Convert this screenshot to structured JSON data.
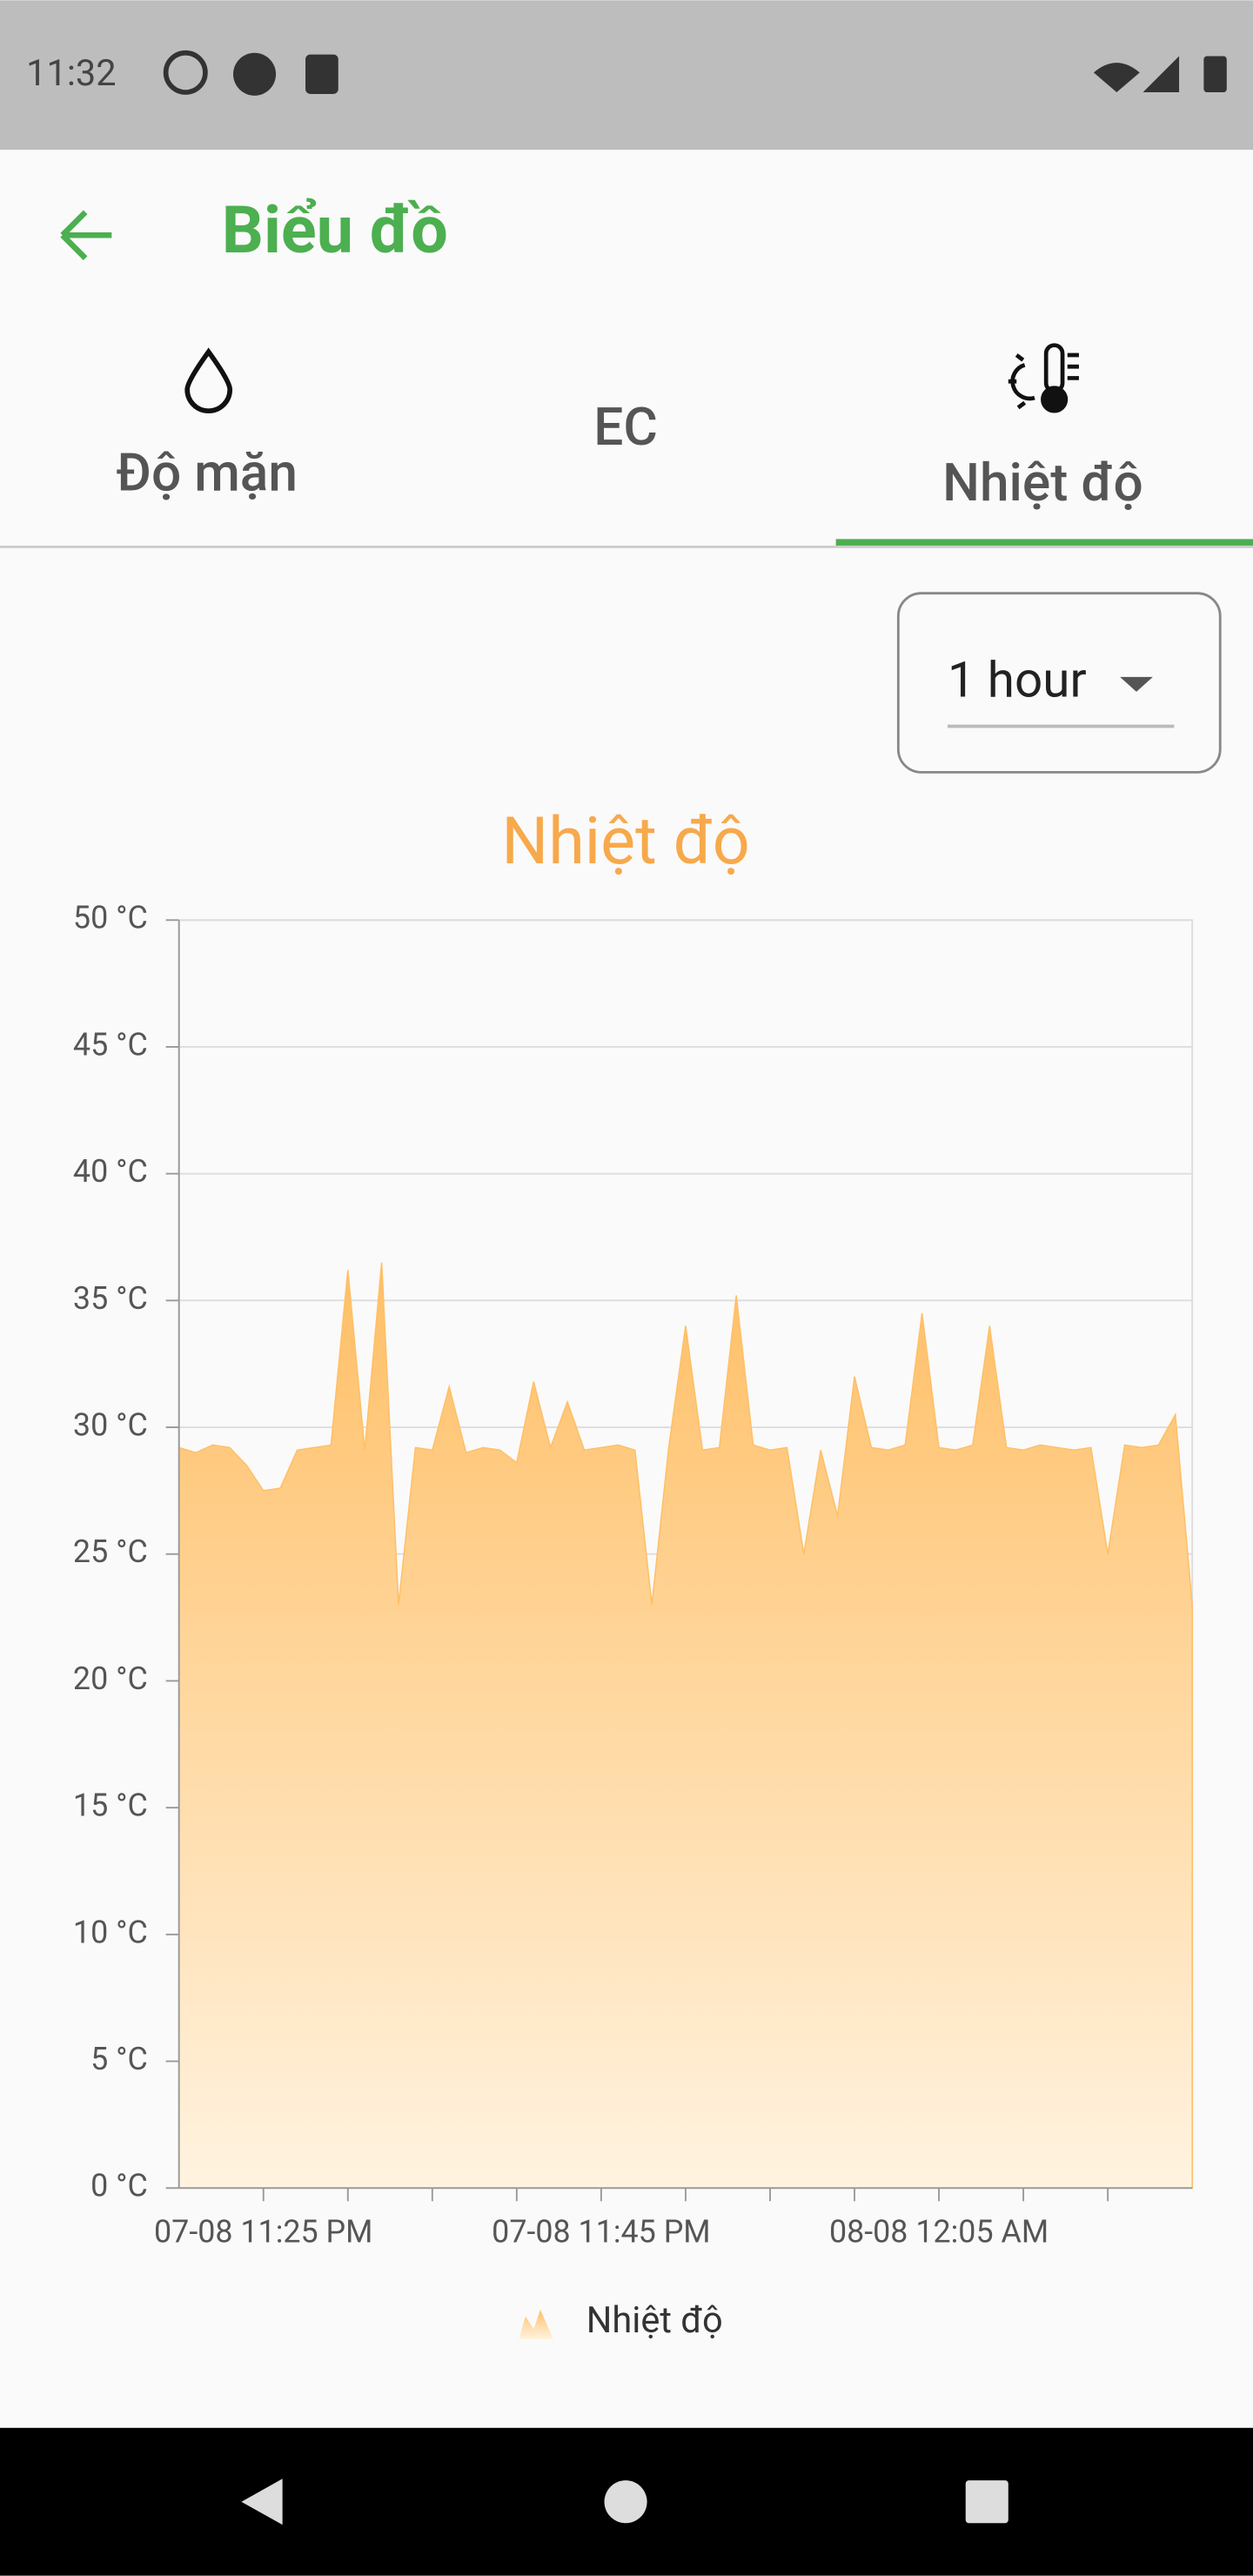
{
  "status_bar": {
    "time": "11:32"
  },
  "app_bar": {
    "title": "Biểu đồ"
  },
  "tabs": [
    "Độ mặn",
    "EC",
    "Nhiệt độ"
  ],
  "range_dropdown": {
    "selected": "1 hour"
  },
  "chart_data": {
    "type": "area",
    "title": "Nhiệt độ",
    "x": [
      "07-08 11:20 PM",
      "07-08 11:21 PM",
      "07-08 11:22 PM",
      "07-08 11:23 PM",
      "07-08 11:24 PM",
      "07-08 11:25 PM",
      "07-08 11:26 PM",
      "07-08 11:27 PM",
      "07-08 11:28 PM",
      "07-08 11:29 PM",
      "07-08 11:30 PM",
      "07-08 11:31 PM",
      "07-08 11:32 PM",
      "07-08 11:33 PM",
      "07-08 11:34 PM",
      "07-08 11:35 PM",
      "07-08 11:36 PM",
      "07-08 11:37 PM",
      "07-08 11:38 PM",
      "07-08 11:39 PM",
      "07-08 11:40 PM",
      "07-08 11:41 PM",
      "07-08 11:42 PM",
      "07-08 11:43 PM",
      "07-08 11:44 PM",
      "07-08 11:45 PM",
      "07-08 11:46 PM",
      "07-08 11:47 PM",
      "07-08 11:48 PM",
      "07-08 11:49 PM",
      "07-08 11:50 PM",
      "07-08 11:51 PM",
      "07-08 11:52 PM",
      "07-08 11:53 PM",
      "07-08 11:54 PM",
      "07-08 11:55 PM",
      "07-08 11:56 PM",
      "07-08 11:57 PM",
      "07-08 11:58 PM",
      "07-08 11:59 PM",
      "08-08 12:00 AM",
      "08-08 12:01 AM",
      "08-08 12:02 AM",
      "08-08 12:03 AM",
      "08-08 12:04 AM",
      "08-08 12:05 AM",
      "08-08 12:06 AM",
      "08-08 12:07 AM",
      "08-08 12:08 AM",
      "08-08 12:09 AM",
      "08-08 12:10 AM",
      "08-08 12:11 AM",
      "08-08 12:12 AM",
      "08-08 12:13 AM",
      "08-08 12:14 AM",
      "08-08 12:15 AM",
      "08-08 12:16 AM",
      "08-08 12:17 AM",
      "08-08 12:18 AM",
      "08-08 12:19 AM",
      "08-08 12:20 AM"
    ],
    "series": [
      {
        "name": "Nhiệt độ",
        "color": "#ffbf66",
        "values": [
          29.2,
          29,
          29.3,
          29.2,
          28.5,
          27.5,
          27.6,
          29.1,
          29.2,
          29.3,
          36.2,
          29.1,
          36.5,
          23,
          29.2,
          29.1,
          31.6,
          29,
          29.2,
          29.1,
          28.6,
          31.8,
          29.2,
          31,
          29.1,
          29.2,
          29.3,
          29.1,
          23,
          29.2,
          34,
          29.1,
          29.2,
          35.2,
          29.3,
          29.1,
          29.2,
          25,
          29.1,
          26.5,
          32,
          29.2,
          29.1,
          29.3,
          34.5,
          29.2,
          29.1,
          29.3,
          34,
          29.2,
          29.1,
          29.3,
          29.2,
          29.1,
          29.2,
          25,
          29.3,
          29.2,
          29.3,
          30.5,
          23
        ]
      }
    ],
    "xlim": [
      "07-08 11:20 PM",
      "08-08 12:20 AM"
    ],
    "xticks": [
      "07-08 11:25 PM",
      "07-08 11:45 PM",
      "08-08 12:05 AM"
    ],
    "xminor_ticks": [
      "07-08 11:30 PM",
      "07-08 11:35 PM",
      "07-08 11:40 PM",
      "07-08 11:50 PM",
      "07-08 11:55 PM",
      "08-08 12:00 AM",
      "08-08 12:10 AM",
      "08-08 12:15 AM"
    ],
    "ylim": [
      0,
      50
    ],
    "yticks": [
      {
        "value": 0,
        "label": "0 °C"
      },
      {
        "value": 5,
        "label": "5 °C"
      },
      {
        "value": 10,
        "label": "10 °C"
      },
      {
        "value": 15,
        "label": "15 °C"
      },
      {
        "value": 20,
        "label": "20 °C"
      },
      {
        "value": 25,
        "label": "25 °C"
      },
      {
        "value": 30,
        "label": "30 °C"
      },
      {
        "value": 35,
        "label": "35 °C"
      },
      {
        "value": 40,
        "label": "40 °C"
      },
      {
        "value": 45,
        "label": "45 °C"
      },
      {
        "value": 50,
        "label": "50 °C"
      }
    ],
    "grid": true,
    "legend": "bottom"
  }
}
